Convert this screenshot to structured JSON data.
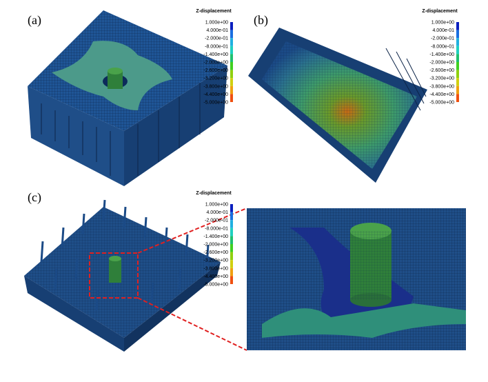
{
  "panels": [
    {
      "label": "(a)",
      "legend": {
        "title": "Z-displacement",
        "labels": [
          "1.000e+00",
          "4.000e-01",
          "-2.000e-01",
          "-8.000e-01",
          "-1.400e+00",
          "-2.000e+00",
          "-2.600e+00",
          "-3.200e+00",
          "-3.800e+00",
          "-4.400e+00",
          "-5.000e+00"
        ]
      }
    },
    {
      "label": "(b)",
      "legend": {
        "title": "Z-displacement",
        "labels": [
          "1.000e+00",
          "4.000e-01",
          "-2.000e-01",
          "-8.000e-01",
          "-1.400e+00",
          "-2.000e+00",
          "-2.600e+00",
          "-3.200e+00",
          "-3.800e+00",
          "-4.400e+00",
          "-5.000e+00"
        ]
      }
    },
    {
      "label": "(c)",
      "legend": {
        "title": "Z-displacement",
        "labels": [
          "1.000e+00",
          "4.000e-01",
          "-2.000e-01",
          "-8.000e-01",
          "-1.400e+00",
          "-2.000e+00",
          "-2.600e+00",
          "-3.200e+00",
          "-3.800e+00",
          "-4.400e+00",
          "-5.000e+00"
        ]
      }
    }
  ]
}
